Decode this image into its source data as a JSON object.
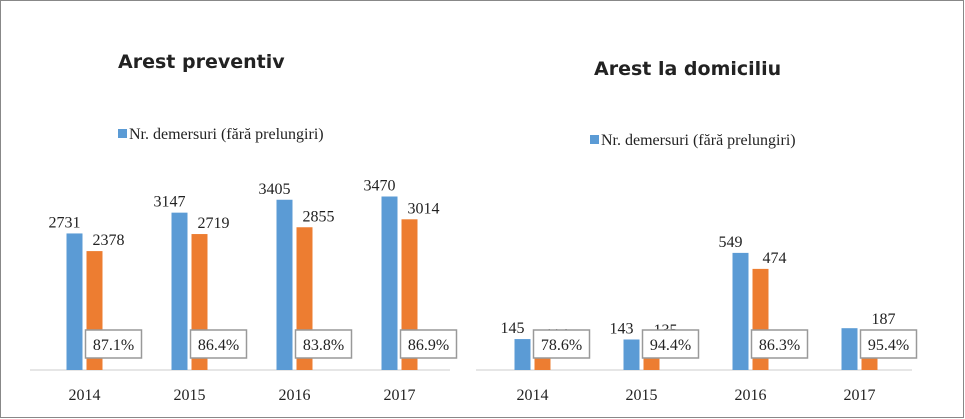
{
  "chart_data": [
    {
      "type": "bar",
      "title": "Arest preventiv",
      "categories": [
        "2014",
        "2015",
        "2016",
        "2017"
      ],
      "series": [
        {
          "name": "Nr. demersuri (fără prelungiri)",
          "color": "#5b9bd5",
          "values": [
            2731,
            3147,
            3405,
            3470
          ]
        },
        {
          "color": "#ed7d31",
          "values": [
            2378,
            2719,
            2855,
            3014
          ]
        }
      ],
      "annotations": [
        "87.1%",
        "86.4%",
        "83.8%",
        "86.9%"
      ],
      "ylim": [
        0,
        4000
      ]
    },
    {
      "type": "bar",
      "title": "Arest la domiciliu",
      "categories": [
        "2014",
        "2015",
        "2016",
        "2017"
      ],
      "series": [
        {
          "name": "Nr. demersuri (fără prelungiri)",
          "color": "#5b9bd5",
          "values": [
            145,
            143,
            549,
            196
          ],
          "value_labels": [
            "145",
            "143",
            "549",
            null
          ]
        },
        {
          "color": "#ed7d31",
          "values": [
            114,
            135,
            474,
            187
          ]
        }
      ],
      "annotations": [
        "78.6%",
        "94.4%",
        "86.3%",
        "95.4%"
      ],
      "ylim": [
        0,
        600
      ]
    }
  ]
}
